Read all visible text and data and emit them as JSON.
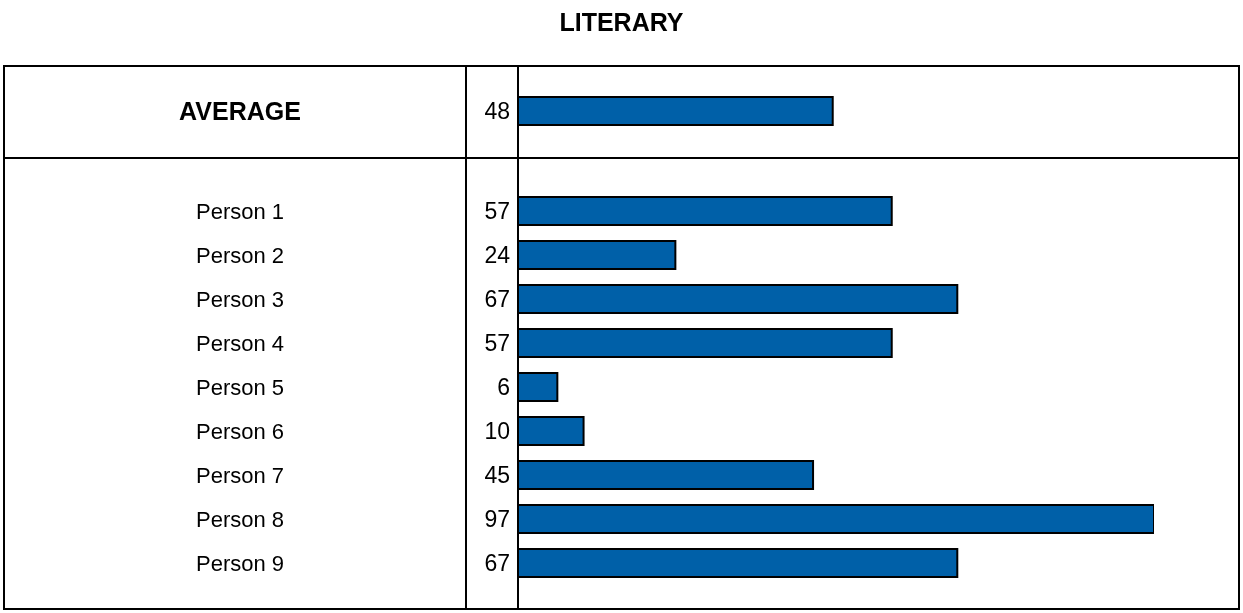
{
  "chart_data": {
    "type": "bar",
    "orientation": "horizontal",
    "title": "LITERARY",
    "categories": [
      "AVERAGE",
      "Person 1",
      "Person 2",
      "Person 3",
      "Person 4",
      "Person 5",
      "Person 6",
      "Person 7",
      "Person 8",
      "Person 9"
    ],
    "values": [
      48,
      57,
      24,
      67,
      57,
      6,
      10,
      45,
      97,
      67
    ],
    "color": "#0060a8",
    "data_labels": true
  }
}
